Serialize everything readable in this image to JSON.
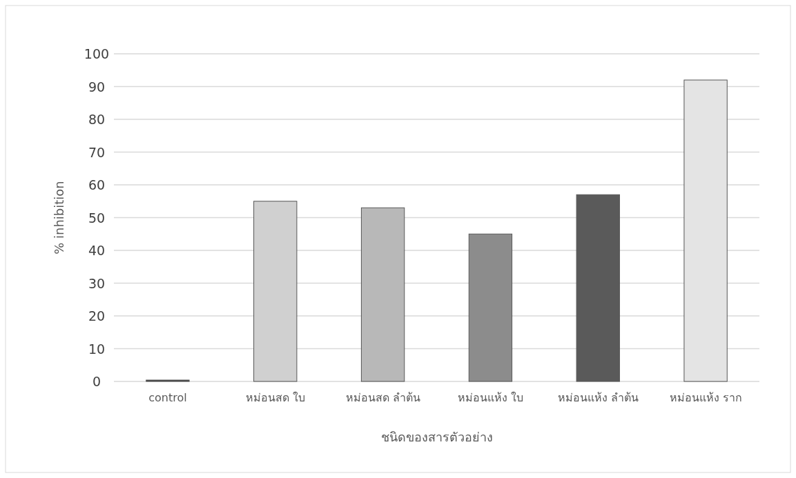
{
  "chart_data": {
    "type": "bar",
    "categories": [
      "control",
      "หม่อนสด ใบ",
      "หม่อนสด ลำต้น",
      "หม่อนแห้ง ใบ",
      "หม่อนแห้ง ลำต้น",
      "หม่อนแห้ง ราก"
    ],
    "values": [
      0,
      55,
      53,
      45,
      57,
      92
    ],
    "colors": [
      "#404040",
      "#d0d0d0",
      "#b8b8b8",
      "#8c8c8c",
      "#5a5a5a",
      "#e4e4e4"
    ],
    "xlabel": "ชนิดของสารตัวอย่าง",
    "ylabel": "% inhibition",
    "ylim": [
      0,
      100
    ],
    "yticks": [
      0,
      10,
      20,
      30,
      40,
      50,
      60,
      70,
      80,
      90,
      100
    ],
    "grid": "y"
  }
}
